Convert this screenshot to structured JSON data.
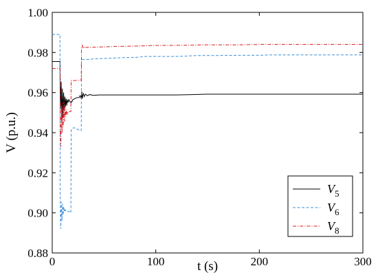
{
  "chart_data": {
    "type": "line",
    "xlabel": "t (s)",
    "ylabel": "V (p.u.)",
    "xlim": [
      0,
      300
    ],
    "ylim": [
      0.88,
      1.0
    ],
    "xticks": [
      "0",
      "100",
      "200",
      "300"
    ],
    "yticks": [
      "0.88",
      "0.90",
      "0.92",
      "0.94",
      "0.96",
      "0.98",
      "1.00"
    ],
    "grid": false,
    "legend_position": "bottom-right",
    "series": [
      {
        "name": "V5",
        "legend_main": "V",
        "legend_sub": "5",
        "color": "#000000",
        "dash": "solid",
        "points": [
          [
            0,
            0.9755
          ],
          [
            7.5,
            0.9755
          ],
          [
            8,
            0.952
          ],
          [
            8.6,
            0.9655
          ],
          [
            9.2,
            0.945
          ],
          [
            9.8,
            0.962
          ],
          [
            10.4,
            0.948
          ],
          [
            11,
            0.96
          ],
          [
            11.6,
            0.951
          ],
          [
            12.2,
            0.958
          ],
          [
            12.8,
            0.953
          ],
          [
            13.4,
            0.957
          ],
          [
            14,
            0.9535
          ],
          [
            14.6,
            0.9565
          ],
          [
            15.2,
            0.955
          ],
          [
            16,
            0.9565
          ],
          [
            17,
            0.9555
          ],
          [
            18,
            0.955
          ],
          [
            19,
            0.9555
          ],
          [
            20,
            0.9565
          ],
          [
            22,
            0.957
          ],
          [
            24,
            0.9575
          ],
          [
            26,
            0.9575
          ],
          [
            27,
            0.9585
          ],
          [
            28,
            0.957
          ],
          [
            28.5,
            0.9605
          ],
          [
            29,
            0.957
          ],
          [
            30,
            0.9595
          ],
          [
            31,
            0.958
          ],
          [
            32,
            0.9592
          ],
          [
            34,
            0.9584
          ],
          [
            36,
            0.959
          ],
          [
            40,
            0.9586
          ],
          [
            45,
            0.9588
          ],
          [
            50,
            0.9588
          ],
          [
            60,
            0.9588
          ],
          [
            80,
            0.9588
          ],
          [
            100,
            0.9588
          ],
          [
            120,
            0.9588
          ],
          [
            135,
            0.959
          ],
          [
            150,
            0.9592
          ],
          [
            200,
            0.9592
          ],
          [
            250,
            0.9592
          ],
          [
            300,
            0.9592
          ]
        ]
      },
      {
        "name": "V6",
        "legend_main": "V",
        "legend_sub": "6",
        "color": "#3a8fd9",
        "dash": "4,2.5",
        "points": [
          [
            0,
            0.989
          ],
          [
            7.5,
            0.989
          ],
          [
            7.7,
            0.905
          ],
          [
            8.2,
            0.892
          ],
          [
            8.8,
            0.9055
          ],
          [
            9.4,
            0.896
          ],
          [
            10,
            0.9045
          ],
          [
            10.6,
            0.899
          ],
          [
            11.2,
            0.903
          ],
          [
            11.8,
            0.9005
          ],
          [
            12.6,
            0.9015
          ],
          [
            14,
            0.9005
          ],
          [
            16,
            0.9008
          ],
          [
            18,
            0.9
          ],
          [
            18.3,
            0.9415
          ],
          [
            19,
            0.942
          ],
          [
            21,
            0.9425
          ],
          [
            24,
            0.9418
          ],
          [
            27,
            0.941
          ],
          [
            28,
            0.941
          ],
          [
            28.3,
            0.9755
          ],
          [
            29,
            0.9765
          ],
          [
            31,
            0.9765
          ],
          [
            35,
            0.9765
          ],
          [
            40,
            0.9768
          ],
          [
            50,
            0.977
          ],
          [
            60,
            0.9772
          ],
          [
            70,
            0.9775
          ],
          [
            80,
            0.9775
          ],
          [
            90,
            0.978
          ],
          [
            100,
            0.978
          ],
          [
            120,
            0.978
          ],
          [
            130,
            0.9782
          ],
          [
            140,
            0.9785
          ],
          [
            160,
            0.9785
          ],
          [
            180,
            0.9786
          ],
          [
            200,
            0.9786
          ],
          [
            210,
            0.9788
          ],
          [
            250,
            0.9788
          ],
          [
            300,
            0.9788
          ]
        ]
      },
      {
        "name": "V8",
        "legend_main": "V",
        "legend_sub": "8",
        "color": "#d9191c",
        "dash": "5,2,1.2,2",
        "points": [
          [
            0,
            0.972
          ],
          [
            7.5,
            0.972
          ],
          [
            7.8,
            0.94
          ],
          [
            8.3,
            0.933
          ],
          [
            8.9,
            0.9535
          ],
          [
            9.5,
            0.94
          ],
          [
            10.1,
            0.955
          ],
          [
            10.7,
            0.943
          ],
          [
            11.3,
            0.9555
          ],
          [
            11.9,
            0.9455
          ],
          [
            12.5,
            0.953
          ],
          [
            13.1,
            0.948
          ],
          [
            13.8,
            0.9515
          ],
          [
            14.6,
            0.949
          ],
          [
            15.5,
            0.9505
          ],
          [
            17,
            0.9505
          ],
          [
            18,
            0.9505
          ],
          [
            18.3,
            0.966
          ],
          [
            20,
            0.966
          ],
          [
            23,
            0.966
          ],
          [
            26,
            0.9662
          ],
          [
            28,
            0.9662
          ],
          [
            28.3,
            0.9825
          ],
          [
            29,
            0.9835
          ],
          [
            30,
            0.982
          ],
          [
            31,
            0.9828
          ],
          [
            33,
            0.9825
          ],
          [
            40,
            0.9826
          ],
          [
            50,
            0.9828
          ],
          [
            60,
            0.983
          ],
          [
            80,
            0.9832
          ],
          [
            100,
            0.9835
          ],
          [
            130,
            0.9836
          ],
          [
            150,
            0.9838
          ],
          [
            180,
            0.9838
          ],
          [
            200,
            0.984
          ],
          [
            250,
            0.984
          ],
          [
            300,
            0.984
          ]
        ]
      }
    ]
  }
}
